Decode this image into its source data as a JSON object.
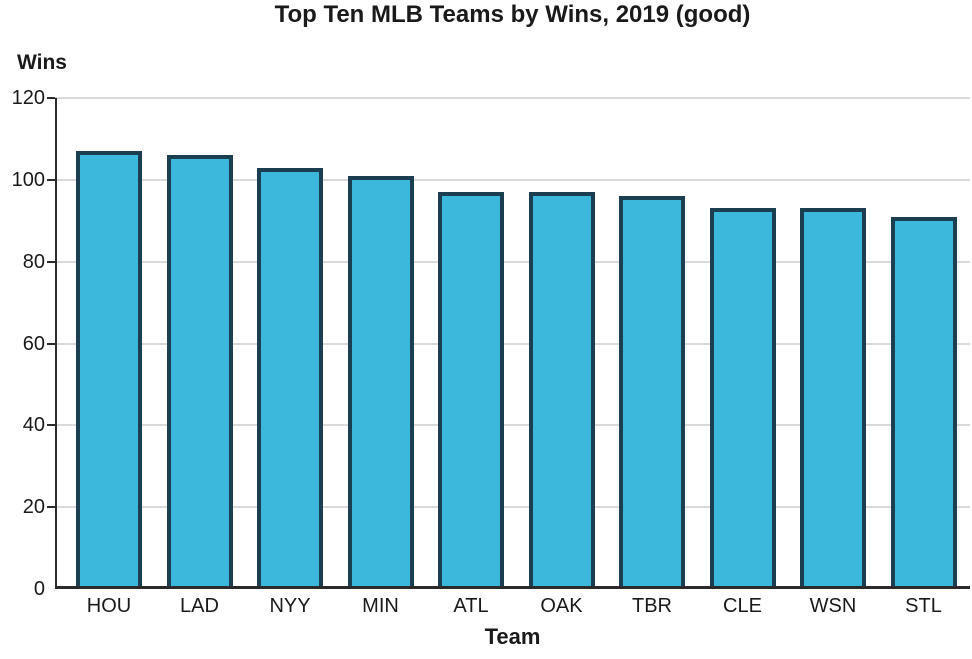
{
  "chart_data": {
    "type": "bar",
    "title": "Top Ten MLB Teams by Wins, 2019 (good)",
    "xlabel": "Team",
    "ylabel": "Wins",
    "categories": [
      "HOU",
      "LAD",
      "NYY",
      "MIN",
      "ATL",
      "OAK",
      "TBR",
      "CLE",
      "WSN",
      "STL"
    ],
    "values": [
      107,
      106,
      103,
      101,
      97,
      97,
      96,
      93,
      93,
      91
    ],
    "ylim": [
      0,
      120
    ],
    "yticks": [
      0,
      20,
      40,
      60,
      80,
      100,
      120
    ],
    "grid": true,
    "legend": "none",
    "colors": {
      "bar_fill": "#3bb8dc",
      "bar_border": "#1c3e51",
      "gridline": "#d9d9d9",
      "axis": "#2b2b2b",
      "text": "#1a1a1a"
    }
  }
}
